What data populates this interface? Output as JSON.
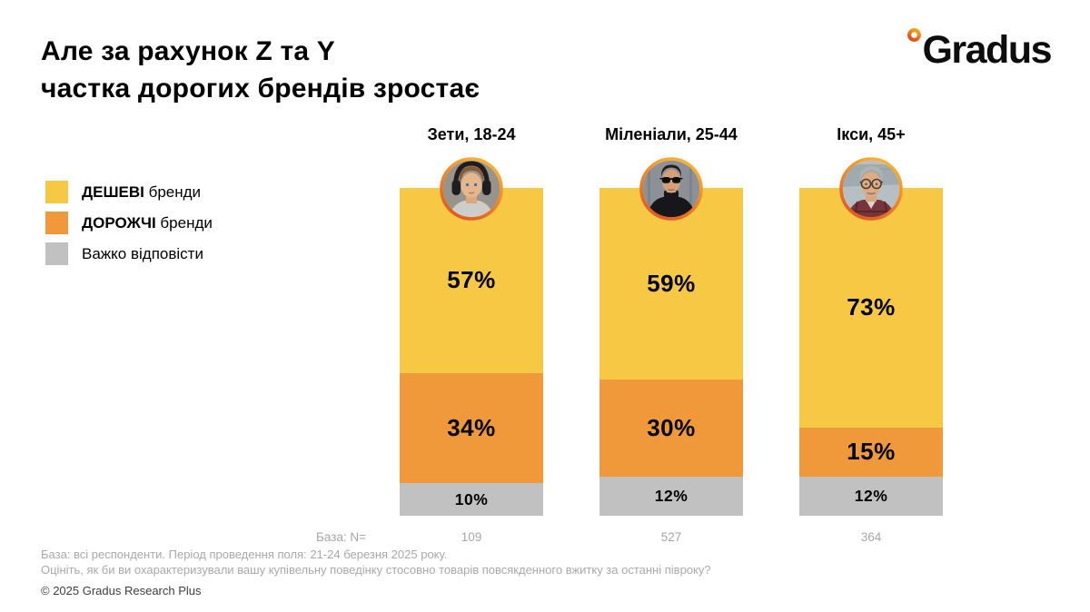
{
  "header": {
    "title_line1": "Але за рахунок Z та Y",
    "title_line2": "частка дорогих брендів зростає",
    "logo_text": "Gradus"
  },
  "legend": {
    "items": [
      {
        "bold": "ДЕШЕВІ",
        "rest": " бренди",
        "color": "#F6C844"
      },
      {
        "bold": "ДОРОЖЧІ",
        "rest": " бренди",
        "color": "#F0993B"
      },
      {
        "bold": "",
        "rest": "Важко відповісти",
        "color": "#C1C1C1"
      }
    ]
  },
  "chart_data": {
    "type": "bar",
    "stacked": true,
    "unit": "%",
    "categories": [
      "Зети, 18-24",
      "Міленіали, 25-44",
      "Ікси, 45+"
    ],
    "series": [
      {
        "name": "ДЕШЕВІ бренди",
        "color": "#F6C844",
        "values": [
          57,
          59,
          73
        ]
      },
      {
        "name": "ДОРОЖЧІ бренди",
        "color": "#F0993B",
        "values": [
          34,
          30,
          15
        ]
      },
      {
        "name": "Важко відповісти",
        "color": "#C1C1C1",
        "values": [
          10,
          12,
          12
        ]
      }
    ],
    "labels": [
      [
        "57%",
        "34%",
        "10%"
      ],
      [
        "59%",
        "30%",
        "12%"
      ],
      [
        "73%",
        "15%",
        "12%"
      ]
    ],
    "base": {
      "label": "База: N=",
      "values": [
        "109",
        "527",
        "364"
      ]
    },
    "avatars": [
      "gen-z-young-man-headphones",
      "millennial-woman-sunglasses",
      "gen-x-man-glasses"
    ]
  },
  "footer": {
    "line1": "База: всі респонденти. Період проведення поля: 21-24 березня 2025 року.",
    "line2": "Оцініть, як би ви охарактеризували вашу купівельну поведінку стосовно товарів повсякденного вжитку за останні півроку?",
    "copyright": "© 2025 Gradus Research Plus"
  }
}
